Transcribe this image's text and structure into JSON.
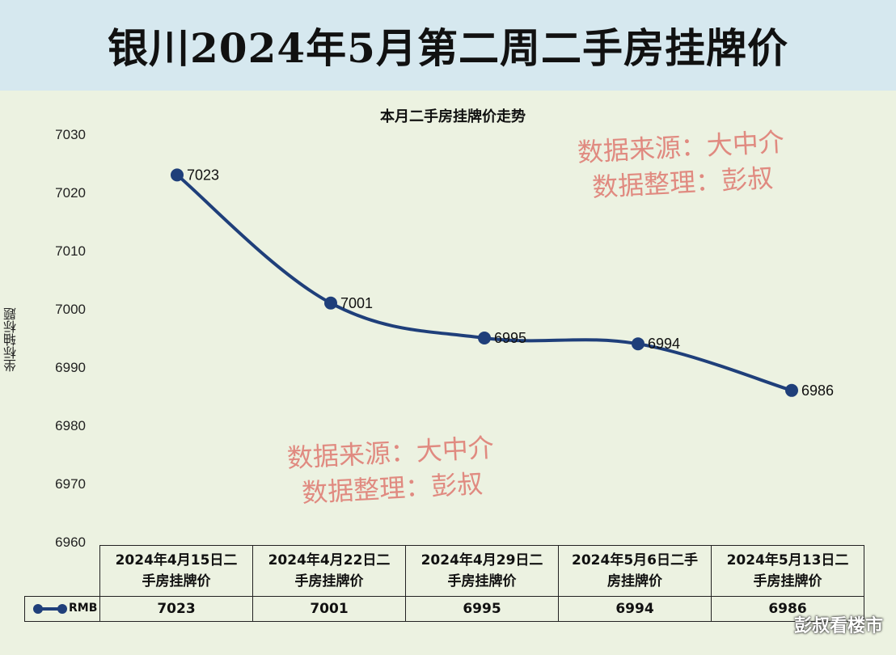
{
  "header": {
    "title": "银川2024年5月第二周二手房挂牌价"
  },
  "watermarks": [
    {
      "line1": "数据来源：大中介",
      "line2": "数据整理：彭叔"
    },
    {
      "line1": "数据来源：大中介",
      "line2": "数据整理：彭叔"
    }
  ],
  "footer": {
    "brand": "彭叔看楼市"
  },
  "chart_data": {
    "type": "line",
    "title": "本月二手房挂牌价走势",
    "ylabel": "坐标轴标题",
    "xlabel": "",
    "ylim": [
      6960,
      7030
    ],
    "yticks": [
      6960,
      6970,
      6980,
      6990,
      7000,
      7010,
      7020,
      7030
    ],
    "categories": [
      "2024年4月15日二手房挂牌价",
      "2024年4月22日二手房挂牌价",
      "2024年4月29日二手房挂牌价",
      "2024年5月6日二手房挂牌价",
      "2024年5月13日二手房挂牌价"
    ],
    "category_lines": [
      [
        "2024年4月15日二",
        "手房挂牌价"
      ],
      [
        "2024年4月22日二",
        "手房挂牌价"
      ],
      [
        "2024年4月29日二",
        "手房挂牌价"
      ],
      [
        "2024年5月6日二手",
        "房挂牌价"
      ],
      [
        "2024年5月13日二",
        "手房挂牌价"
      ]
    ],
    "series": [
      {
        "name": "RMB",
        "values": [
          7023,
          7001,
          6995,
          6994,
          6986
        ],
        "color": "#1f3f7a"
      }
    ],
    "grid": false,
    "legend": "bottom-left (data table)"
  }
}
